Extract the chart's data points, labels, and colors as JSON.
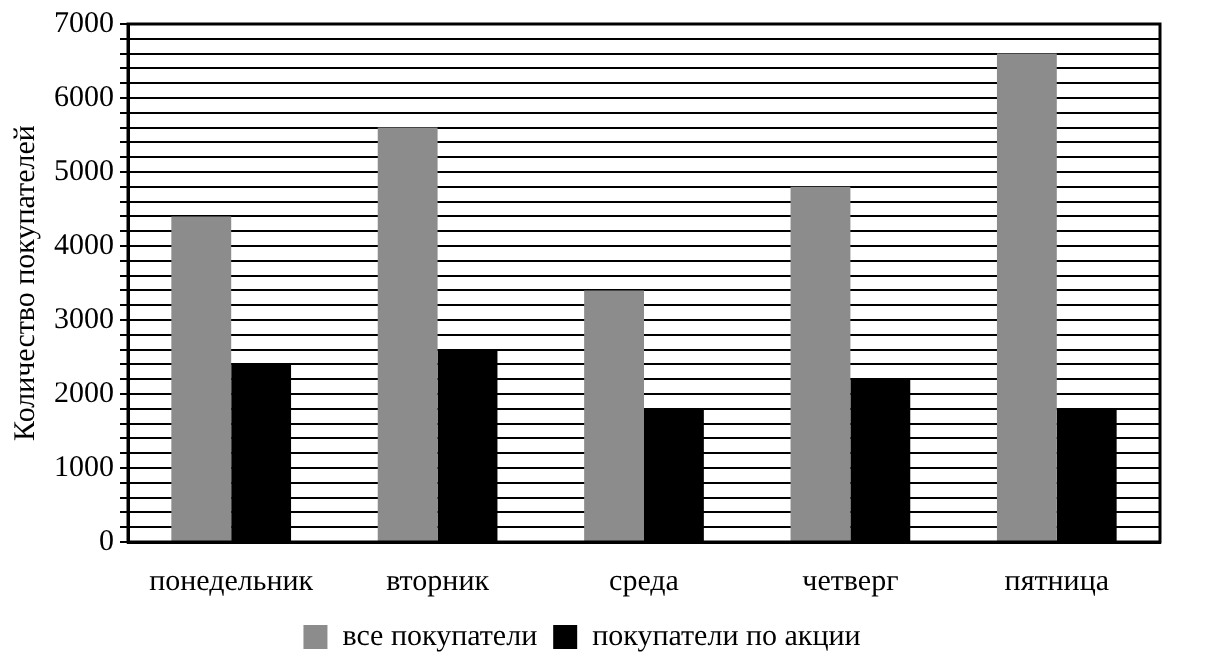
{
  "chart_data": {
    "type": "bar",
    "ylabel": "Количество покупателей",
    "categories": [
      "понедельник",
      "вторник",
      "среда",
      "четверг",
      "пятница"
    ],
    "series": [
      {
        "name": "все покупатели",
        "color": "#8c8c8c",
        "values": [
          4400,
          5600,
          3400,
          4800,
          6600
        ]
      },
      {
        "name": "покупатели по акции",
        "color": "#000000",
        "values": [
          2400,
          2600,
          1800,
          2200,
          1800
        ]
      }
    ],
    "ylim": [
      0,
      7000
    ],
    "yticks": [
      0,
      {
        "value": 200,
        "label": null
      },
      {
        "value": 400,
        "label": null
      },
      {
        "value": 600,
        "label": null
      },
      {
        "value": 800,
        "label": null
      },
      1000,
      {
        "value": 1200,
        "label": null
      },
      {
        "value": 1400,
        "label": null
      },
      {
        "value": 1600,
        "label": null
      },
      {
        "value": 1800,
        "label": null
      },
      2000,
      {
        "value": 2200,
        "label": null
      },
      {
        "value": 2400,
        "label": null
      },
      {
        "value": 2600,
        "label": null
      },
      {
        "value": 2800,
        "label": null
      },
      3000,
      {
        "value": 3200,
        "label": null
      },
      {
        "value": 3400,
        "label": null
      },
      {
        "value": 3600,
        "label": null
      },
      {
        "value": 3800,
        "label": null
      },
      4000,
      {
        "value": 4200,
        "label": null
      },
      {
        "value": 4400,
        "label": null
      },
      {
        "value": 4600,
        "label": null
      },
      {
        "value": 4800,
        "label": null
      },
      5000,
      {
        "value": 5200,
        "label": null
      },
      {
        "value": 5400,
        "label": null
      },
      {
        "value": 5600,
        "label": null
      },
      {
        "value": 5800,
        "label": null
      },
      6000,
      {
        "value": 6200,
        "label": null
      },
      {
        "value": 6400,
        "label": null
      },
      {
        "value": 6600,
        "label": null
      },
      {
        "value": 6800,
        "label": null
      },
      7000
    ],
    "grid": "y",
    "legend": "bottom"
  }
}
